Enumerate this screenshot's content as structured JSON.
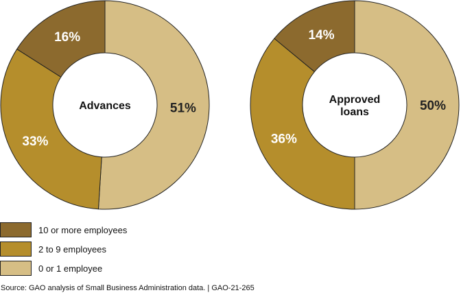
{
  "chart_data": {
    "type": "pie",
    "series_order": [
      "10 or more employees",
      "2 to 9 employees",
      "0 or 1 employee"
    ],
    "colors": {
      "10 or more employees": "#8C6A2E",
      "2 to 9 employees": "#B58E2C",
      "0 or 1 employee": "#D6BE85"
    },
    "charts": [
      {
        "center_label": "Advances",
        "slices": [
          {
            "name": "0 or 1 employee",
            "value": 51,
            "label": "51%"
          },
          {
            "name": "2 to 9 employees",
            "value": 33,
            "label": "33%"
          },
          {
            "name": "10 or more employees",
            "value": 16,
            "label": "16%"
          }
        ]
      },
      {
        "center_label": "Approved loans",
        "slices": [
          {
            "name": "0 or 1 employee",
            "value": 50,
            "label": "50%"
          },
          {
            "name": "2 to 9 employees",
            "value": 36,
            "label": "36%"
          },
          {
            "name": "10 or more employees",
            "value": 14,
            "label": "14%"
          }
        ]
      }
    ]
  },
  "legend": [
    {
      "label": "10 or more employees",
      "color": "#8C6A2E"
    },
    {
      "label": "2 to 9 employees",
      "color": "#B58E2C"
    },
    {
      "label": "0 or 1 employee",
      "color": "#D6BE85"
    }
  ],
  "source": "Source: GAO analysis of Small Business Administration data.  |  GAO-21-265"
}
